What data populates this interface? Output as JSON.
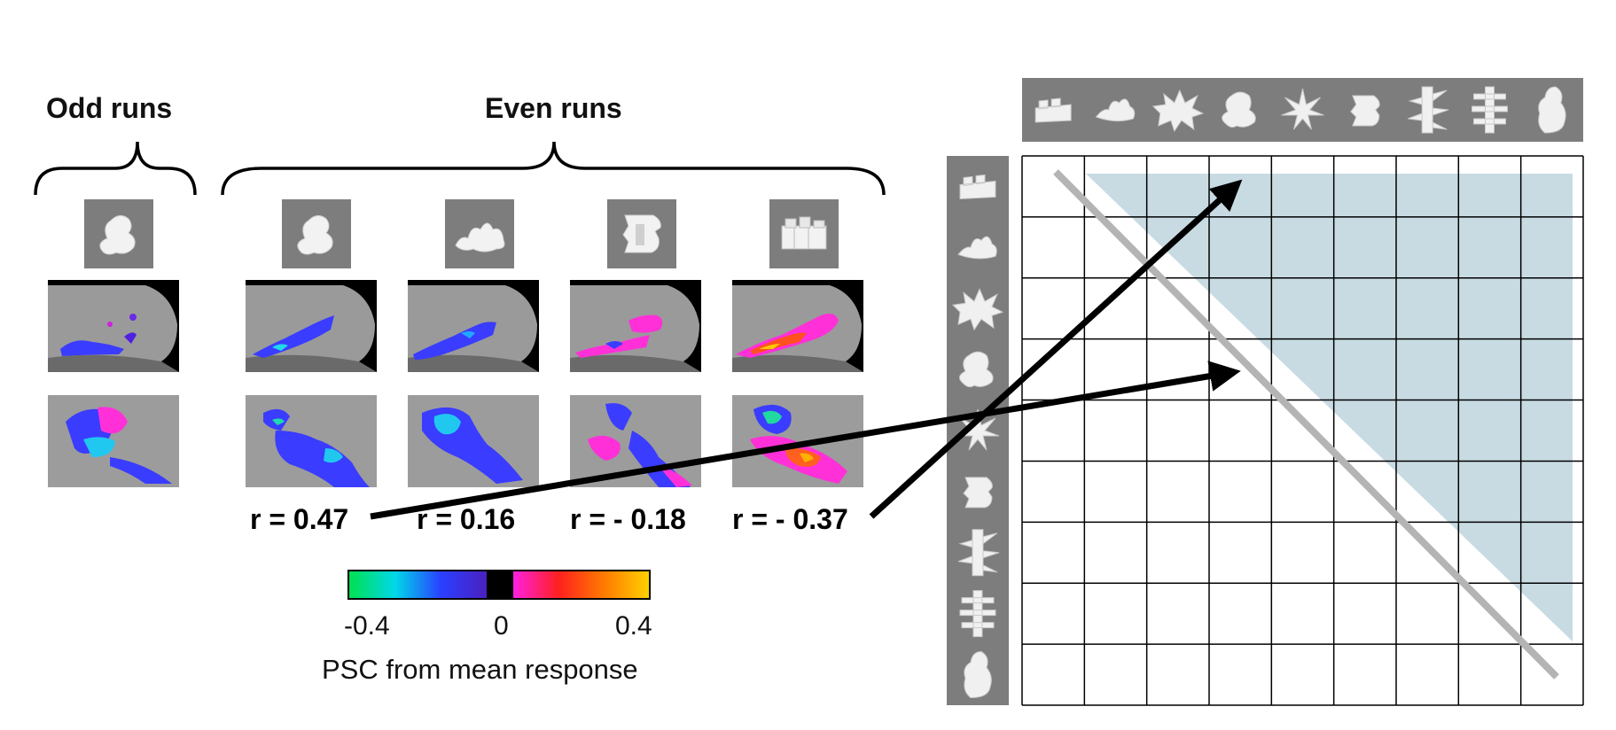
{
  "panel_left": {
    "odd_label": "Odd runs",
    "even_label": "Even runs",
    "odd_shape": "bumpy-blob-shape",
    "even_shapes": [
      "bumpy-blob-shape",
      "wavy-blob-shape",
      "block-shape",
      "cube-cluster-shape"
    ],
    "correlations": [
      "r = 0.47",
      "r = 0.16",
      "r = - 0.18",
      "r = - 0.37"
    ]
  },
  "colorbar": {
    "ticks": [
      "-0.4",
      "0",
      "0.4"
    ],
    "label": "PSC from mean response",
    "colors_negative": [
      "#00e050",
      "#00d8e8",
      "#2a40ff",
      "#4a20c0"
    ],
    "colors_positive": [
      "#ff20e0",
      "#ff2020",
      "#ff7a00",
      "#ffd000"
    ]
  },
  "matrix": {
    "rows": 9,
    "cols": 9,
    "shapes": [
      "cube-cluster-shape",
      "wavy-blob-shape",
      "spiky-blob-shape",
      "bumpy-blob-shape",
      "star-burst-shape",
      "block-shape",
      "spiked-column-shape",
      "stacked-column-shape",
      "tall-blob-shape"
    ],
    "shading_color": "#c8dbe3",
    "diagonal_color": "#b4b4b4"
  }
}
